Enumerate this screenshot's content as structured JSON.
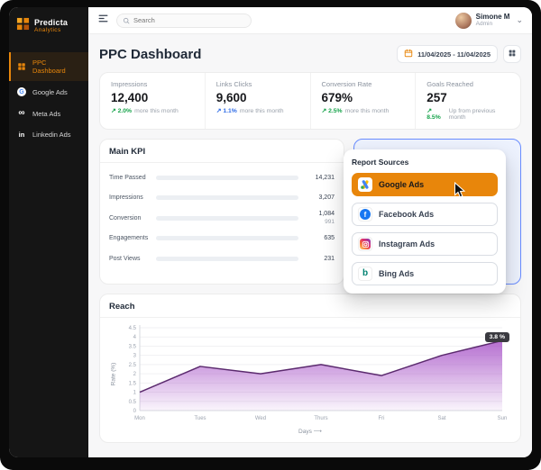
{
  "colors": {
    "accent": "#E8860B",
    "positive": "#16a34a",
    "highlight_border": "#6A8DFF"
  },
  "brand": {
    "name": "Predicta",
    "subtitle": "Analytics"
  },
  "icons": {
    "trend_up": "↗",
    "chevron_down": "⌄",
    "facebook_f": "f",
    "bing_b": "b",
    "meta_infinity": "∞",
    "linkedin_in": "in",
    "google_g": "G",
    "days_arrow": "⟶"
  },
  "sidebar": {
    "items": [
      {
        "label": "PPC Dashboard"
      },
      {
        "label": "Google Ads"
      },
      {
        "label": "Meta Ads"
      },
      {
        "label": "Linkedin Ads"
      }
    ]
  },
  "topbar": {
    "search_placeholder": "Search",
    "user_name": "Simone M",
    "user_role": "Admin"
  },
  "page": {
    "title": "PPC Dashboard",
    "date_range": "11/04/2025 - 11/04/2025"
  },
  "stats": [
    {
      "label": "Impressions",
      "value": "12,400",
      "trend_pct": "2.0%",
      "trend_text": "more this month",
      "trend_color": "#16a34a"
    },
    {
      "label": "Links Clicks",
      "value": "9,600",
      "trend_pct": "1.1%",
      "trend_text": "more this month",
      "trend_color": "#2e6be6"
    },
    {
      "label": "Conversion Rate",
      "value": "679%",
      "trend_pct": "2.5%",
      "trend_text": "more this month",
      "trend_color": "#16a34a"
    },
    {
      "label": "Goals Reached",
      "value": "257",
      "trend_pct": "8.5%",
      "trend_text": "Up from previous month",
      "trend_color": "#16a34a"
    }
  ],
  "main_kpi": {
    "title": "Main KPI",
    "rows": [
      {
        "label": "Time Passed",
        "value": "14,231",
        "bar_pct": 96
      },
      {
        "label": "Impressions",
        "value": "3,207",
        "bar_pct": 58
      },
      {
        "label": "Conversion",
        "value": "1,084",
        "sub_value": "991",
        "bar_pct": 46
      },
      {
        "label": "Engagements",
        "value": "635",
        "bar_pct": 38
      },
      {
        "label": "Post Views",
        "value": "231",
        "bar_pct": 30
      }
    ]
  },
  "report_sources": {
    "title": "Report Sources",
    "items": [
      {
        "label": "Google Ads",
        "selected": true
      },
      {
        "label": "Facebook Ads",
        "selected": false
      },
      {
        "label": "Instagram Ads",
        "selected": false
      },
      {
        "label": "Bing Ads",
        "selected": false
      }
    ]
  },
  "chart_data": {
    "type": "area",
    "title": "Reach",
    "categories": [
      "Mon",
      "Tues",
      "Wed",
      "Thurs",
      "Fri",
      "Sat",
      "Sun"
    ],
    "values": [
      1.0,
      2.4,
      2.0,
      2.5,
      1.9,
      3.0,
      3.8
    ],
    "ylabel": "Rate (%)",
    "xlabel": "Days",
    "ylim": [
      0,
      4.5
    ],
    "ytick_step": 0.5,
    "grid": true,
    "legend": "none",
    "badge": "3.8 %",
    "line_color": "#5B2A6E",
    "fill_color": "#A855C8"
  }
}
